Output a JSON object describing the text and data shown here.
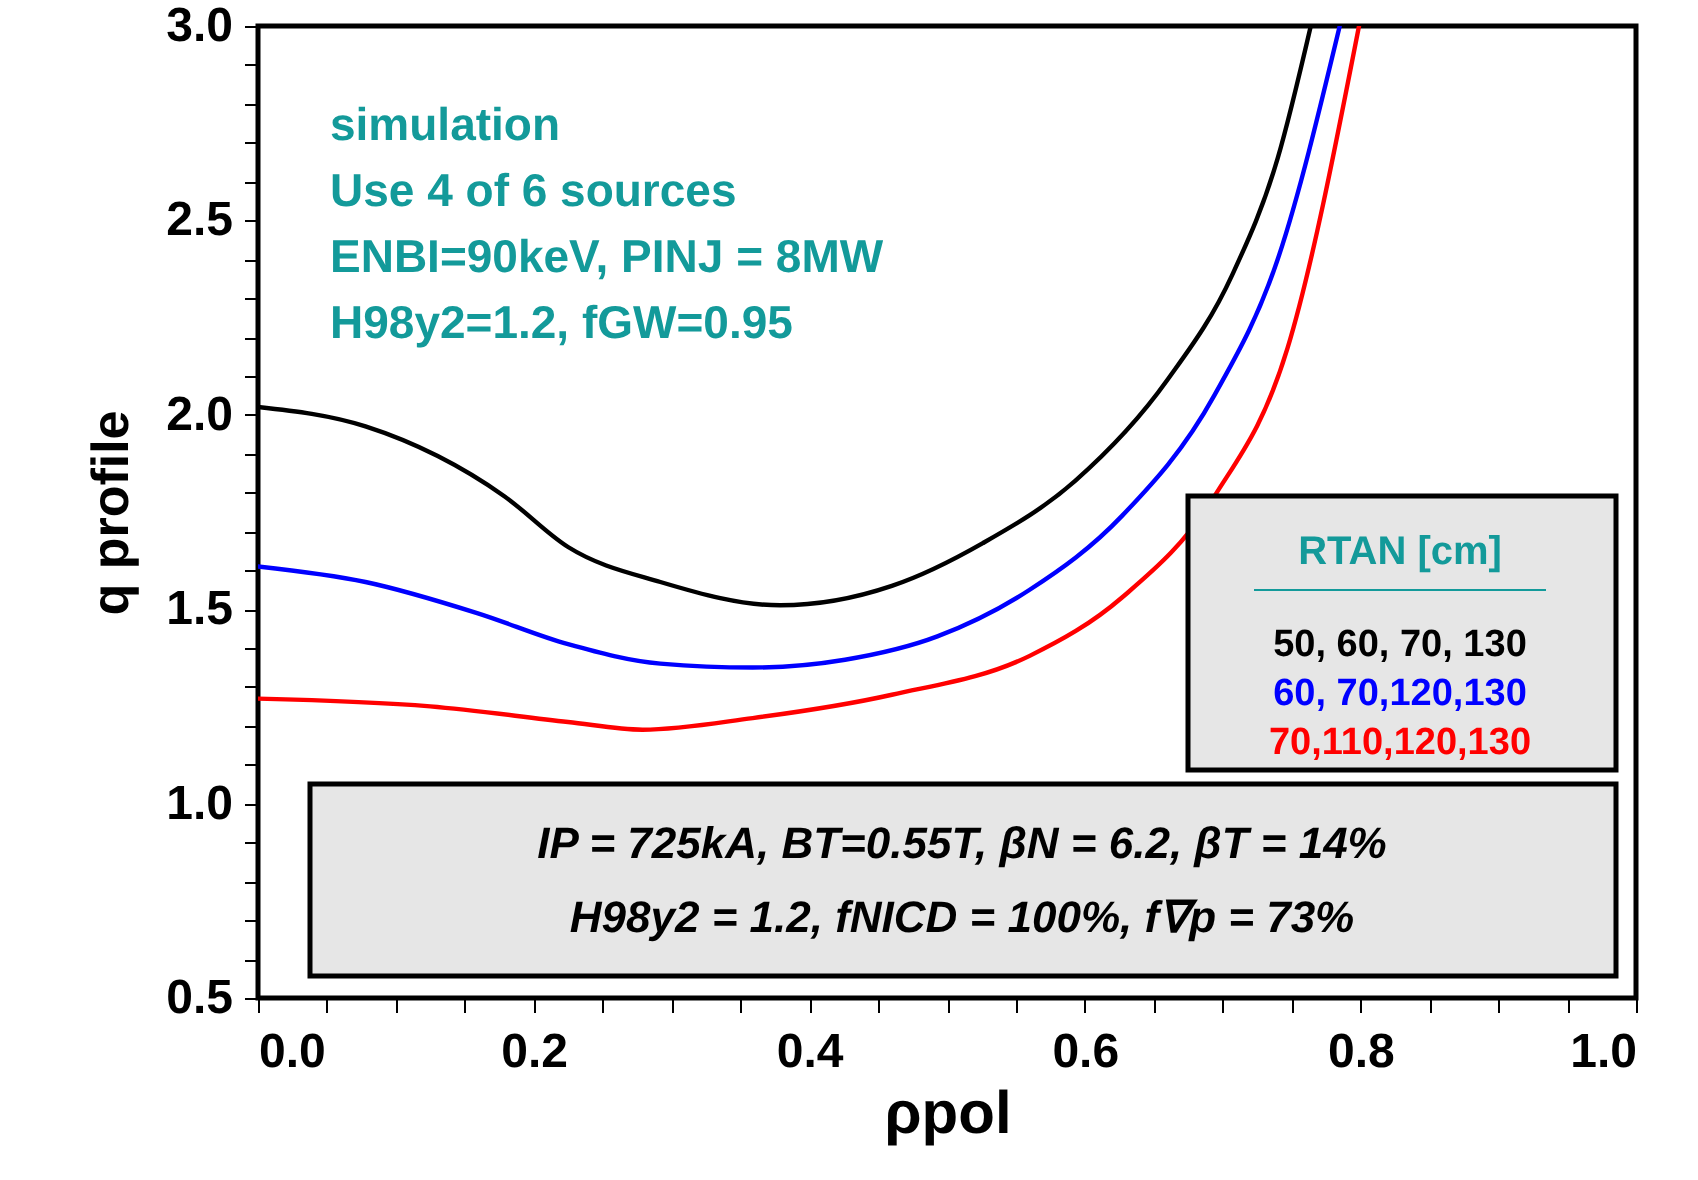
{
  "chart_data": {
    "type": "line",
    "xlabel": "ρpol",
    "ylabel": "q profile",
    "legend_title": "RTAN [cm]",
    "legend": "right",
    "annotations": [
      "simulation",
      "Use 4 of 6 sources",
      "ENBI=90keV, PINJ = 8MW",
      "H98y2=1.2, fGW=0.95",
      "IP = 725kA, BT=0.55T,  βN = 6.2, βT = 14%",
      "H98y2 = 1.2, fNICD = 100%, f∇p = 73%"
    ],
    "xlim": [
      0.0,
      1.0
    ],
    "ylim": [
      0.5,
      3.0
    ],
    "xticks": [
      {
        "value": 0.0,
        "label": "0.0"
      },
      {
        "value": 0.05,
        "label": null
      },
      {
        "value": 0.1,
        "label": null
      },
      {
        "value": 0.15,
        "label": null
      },
      {
        "value": 0.2,
        "label": "0.2"
      },
      {
        "value": 0.25,
        "label": null
      },
      {
        "value": 0.3,
        "label": null
      },
      {
        "value": 0.35,
        "label": null
      },
      {
        "value": 0.4,
        "label": "0.4"
      },
      {
        "value": 0.45,
        "label": null
      },
      {
        "value": 0.5,
        "label": null
      },
      {
        "value": 0.55,
        "label": null
      },
      {
        "value": 0.6,
        "label": "0.6"
      },
      {
        "value": 0.65,
        "label": null
      },
      {
        "value": 0.7,
        "label": null
      },
      {
        "value": 0.75,
        "label": null
      },
      {
        "value": 0.8,
        "label": "0.8"
      },
      {
        "value": 0.85,
        "label": null
      },
      {
        "value": 0.9,
        "label": null
      },
      {
        "value": 0.95,
        "label": null
      },
      {
        "value": 1.0,
        "label": "1.0"
      }
    ],
    "yticks": [
      {
        "value": 0.5,
        "label": "0.5"
      },
      {
        "value": 0.6,
        "label": null
      },
      {
        "value": 0.7,
        "label": null
      },
      {
        "value": 0.8,
        "label": null
      },
      {
        "value": 0.9,
        "label": null
      },
      {
        "value": 1.0,
        "label": "1.0"
      },
      {
        "value": 1.1,
        "label": null
      },
      {
        "value": 1.2,
        "label": null
      },
      {
        "value": 1.3,
        "label": null
      },
      {
        "value": 1.4,
        "label": null
      },
      {
        "value": 1.5,
        "label": "1.5"
      },
      {
        "value": 1.6,
        "label": null
      },
      {
        "value": 1.7,
        "label": null
      },
      {
        "value": 1.8,
        "label": null
      },
      {
        "value": 1.9,
        "label": null
      },
      {
        "value": 2.0,
        "label": "2.0"
      },
      {
        "value": 2.1,
        "label": null
      },
      {
        "value": 2.2,
        "label": null
      },
      {
        "value": 2.3,
        "label": null
      },
      {
        "value": 2.4,
        "label": null
      },
      {
        "value": 2.5,
        "label": "2.5"
      },
      {
        "value": 2.6,
        "label": null
      },
      {
        "value": 2.7,
        "label": null
      },
      {
        "value": 2.8,
        "label": null
      },
      {
        "value": 2.9,
        "label": null
      },
      {
        "value": 3.0,
        "label": "3.0"
      }
    ],
    "grid": false,
    "marker": "none",
    "line_style": "solid",
    "series": [
      {
        "name": "50,  60, 70, 130",
        "color": "#000000",
        "x": [
          0.0,
          0.078,
          0.179,
          0.225,
          0.292,
          0.379,
          0.46,
          0.526,
          0.593,
          0.66,
          0.707,
          0.74,
          0.764
        ],
        "values": [
          2.02,
          1.97,
          1.79,
          1.66,
          1.57,
          1.51,
          1.56,
          1.67,
          1.83,
          2.09,
          2.36,
          2.66,
          3.0
        ]
      },
      {
        "name": "60,  70,120,130",
        "color": "#0000ff",
        "x": [
          0.0,
          0.078,
          0.159,
          0.225,
          0.292,
          0.359,
          0.426,
          0.493,
          0.56,
          0.627,
          0.694,
          0.74,
          0.785
        ],
        "values": [
          1.61,
          1.57,
          1.49,
          1.41,
          1.36,
          1.35,
          1.37,
          1.43,
          1.55,
          1.74,
          2.05,
          2.4,
          3.0
        ]
      },
      {
        "name": "70,110,120,130",
        "color": "#ff0000",
        "x": [
          0.0,
          0.125,
          0.225,
          0.279,
          0.359,
          0.46,
          0.56,
          0.627,
          0.694,
          0.747,
          0.799
        ],
        "values": [
          1.27,
          1.25,
          1.21,
          1.19,
          1.22,
          1.28,
          1.38,
          1.53,
          1.79,
          2.17,
          3.0
        ]
      }
    ]
  }
}
